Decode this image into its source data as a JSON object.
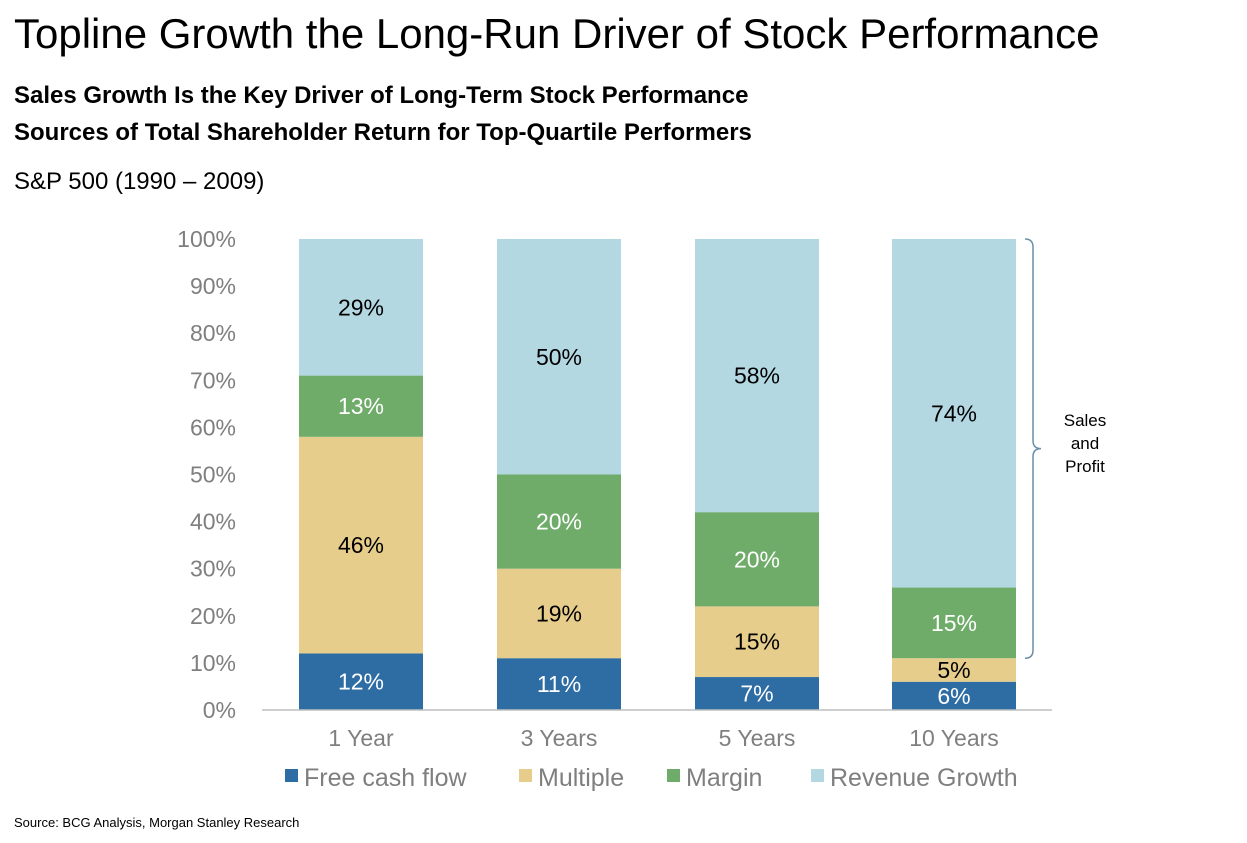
{
  "header": {
    "title": "Topline Growth the Long-Run Driver of Stock Performance",
    "subtitle1": "Sales Growth Is the Key Driver of Long-Term Stock Performance",
    "subtitle2": "Sources of Total Shareholder Return for Top-Quartile Performers",
    "context": "S&P 500 (1990 – 2009)"
  },
  "footer": {
    "source": "Source: BCG Analysis, Morgan Stanley Research"
  },
  "chart_data": {
    "type": "bar",
    "stacked": true,
    "categories": [
      "1 Year",
      "3 Years",
      "5 Years",
      "10 Years"
    ],
    "series": [
      {
        "name": "Free cash flow",
        "color": "#2e6da4",
        "values": [
          12,
          11,
          7,
          6
        ],
        "labels": [
          "12%",
          "11%",
          "7%",
          "6%"
        ],
        "label_color": "#ffffff"
      },
      {
        "name": "Multiple",
        "color": "#e6cd8c",
        "values": [
          46,
          19,
          15,
          5
        ],
        "labels": [
          "46%",
          "19%",
          "15%",
          "5%"
        ],
        "label_color": "#000000"
      },
      {
        "name": "Margin",
        "color": "#6fac6a",
        "values": [
          13,
          20,
          20,
          15
        ],
        "labels": [
          "13%",
          "20%",
          "20%",
          "15%"
        ],
        "label_color": "#ffffff"
      },
      {
        "name": "Revenue Growth",
        "color": "#b3d8e2",
        "values": [
          29,
          50,
          58,
          74
        ],
        "labels": [
          "29%",
          "50%",
          "58%",
          "74%"
        ],
        "label_color": "#000000"
      }
    ],
    "ylim": [
      0,
      100
    ],
    "y_ticks": [
      "0%",
      "10%",
      "20%",
      "30%",
      "40%",
      "50%",
      "60%",
      "70%",
      "80%",
      "90%",
      "100%"
    ],
    "legend_position": "bottom",
    "grid": false,
    "annotation": {
      "text_lines": [
        "Sales",
        "and",
        "Profit"
      ],
      "bracket_range": [
        11,
        100
      ],
      "bracket_category": "10 Years"
    }
  }
}
